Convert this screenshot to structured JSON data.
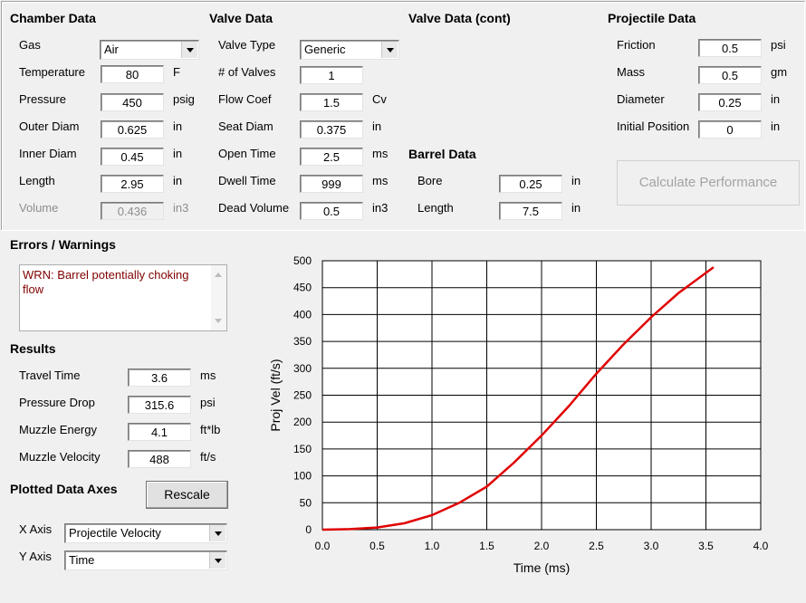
{
  "chamber": {
    "title": "Chamber Data",
    "gas": {
      "label": "Gas",
      "value": "Air"
    },
    "temperature": {
      "label": "Temperature",
      "value": "80",
      "unit": "F"
    },
    "pressure": {
      "label": "Pressure",
      "value": "450",
      "unit": "psig"
    },
    "outer_diam": {
      "label": "Outer Diam",
      "value": "0.625",
      "unit": "in"
    },
    "inner_diam": {
      "label": "Inner Diam",
      "value": "0.45",
      "unit": "in"
    },
    "length": {
      "label": "Length",
      "value": "2.95",
      "unit": "in"
    },
    "volume": {
      "label": "Volume",
      "value": "0.436",
      "unit": "in3"
    }
  },
  "valve": {
    "title": "Valve Data",
    "type": {
      "label": "Valve Type",
      "value": "Generic"
    },
    "count": {
      "label": "# of Valves",
      "value": "1"
    },
    "flow_coef": {
      "label": "Flow Coef",
      "value": "1.5",
      "unit": "Cv"
    },
    "seat_diam": {
      "label": "Seat Diam",
      "value": "0.375",
      "unit": "in"
    },
    "open_time": {
      "label": "Open Time",
      "value": "2.5",
      "unit": "ms"
    },
    "dwell_time": {
      "label": "Dwell Time",
      "value": "999",
      "unit": "ms"
    },
    "dead_volume": {
      "label": "Dead Volume",
      "value": "0.5",
      "unit": "in3"
    }
  },
  "valve_cont": {
    "title": "Valve Data (cont)"
  },
  "barrel": {
    "title": "Barrel Data",
    "bore": {
      "label": "Bore",
      "value": "0.25",
      "unit": "in"
    },
    "length": {
      "label": "Length",
      "value": "7.5",
      "unit": "in"
    }
  },
  "projectile": {
    "title": "Projectile Data",
    "friction": {
      "label": "Friction",
      "value": "0.5",
      "unit": "psi"
    },
    "mass": {
      "label": "Mass",
      "value": "0.5",
      "unit": "gm"
    },
    "diameter": {
      "label": "Diameter",
      "value": "0.25",
      "unit": "in"
    },
    "initial_position": {
      "label": "Initial Position",
      "value": "0",
      "unit": "in"
    }
  },
  "calculate_button": "Calculate Performance",
  "errors": {
    "title": "Errors / Warnings",
    "text": "WRN: Barrel potentially choking flow"
  },
  "results": {
    "title": "Results",
    "travel_time": {
      "label": "Travel Time",
      "value": "3.6",
      "unit": "ms"
    },
    "pressure_drop": {
      "label": "Pressure Drop",
      "value": "315.6",
      "unit": "psi"
    },
    "muzzle_energy": {
      "label": "Muzzle Energy",
      "value": "4.1",
      "unit": "ft*lb"
    },
    "muzzle_velocity": {
      "label": "Muzzle Velocity",
      "value": "488",
      "unit": "ft/s"
    }
  },
  "axes": {
    "title": "Plotted Data Axes",
    "rescale_button": "Rescale",
    "x_label": "X Axis",
    "x_value": "Projectile Velocity",
    "y_label": "Y Axis",
    "y_value": "Time"
  },
  "chart_data": {
    "type": "line",
    "xlabel": "Time (ms)",
    "ylabel": "Proj Vel (ft/s)",
    "xlim": [
      0,
      4
    ],
    "ylim": [
      0,
      500
    ],
    "x_ticks": [
      "0.0",
      "0.5",
      "1.0",
      "1.5",
      "2.0",
      "2.5",
      "3.0",
      "3.5",
      "4.0"
    ],
    "y_ticks": [
      "0",
      "50",
      "100",
      "150",
      "200",
      "250",
      "300",
      "350",
      "400",
      "450",
      "500"
    ],
    "grid": true,
    "line_color": "#e00000",
    "series": [
      {
        "x": [
          0,
          0.25,
          0.5,
          0.75,
          1.0,
          1.25,
          1.5,
          1.75,
          2.0,
          2.25,
          2.5,
          2.75,
          3.0,
          3.25,
          3.57
        ],
        "y": [
          0,
          1,
          4,
          12,
          27,
          50,
          80,
          125,
          175,
          230,
          290,
          345,
          395,
          440,
          488
        ]
      }
    ]
  }
}
